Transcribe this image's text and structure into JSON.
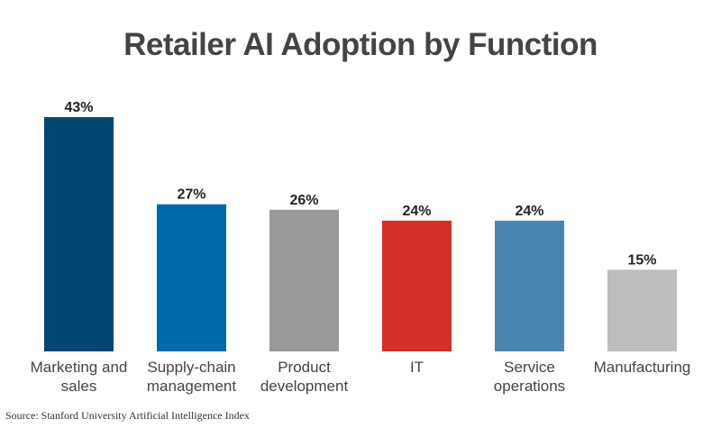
{
  "chart_data": {
    "type": "bar",
    "title": "Retailer AI Adoption by Function",
    "categories": [
      [
        "Marketing and",
        "sales"
      ],
      [
        "Supply-chain",
        "management"
      ],
      [
        "Product",
        "development"
      ],
      [
        "IT"
      ],
      [
        "Service",
        "operations"
      ],
      [
        "Manufacturing"
      ]
    ],
    "values": [
      43,
      27,
      26,
      24,
      24,
      15
    ],
    "value_labels": [
      "43%",
      "27%",
      "26%",
      "24%",
      "24%",
      "15%"
    ],
    "colors": [
      "#004673",
      "#0069a9",
      "#9a9a9a",
      "#d3302a",
      "#4985b0",
      "#bdbdbd"
    ],
    "xlabel": "",
    "ylabel": "",
    "ylim": [
      0,
      43
    ],
    "grid": false,
    "source": "Source: Stanford University Artificial Intelligence Index"
  }
}
